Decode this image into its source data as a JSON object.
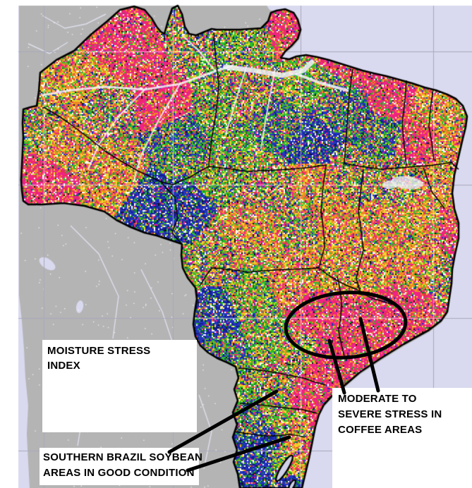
{
  "map": {
    "labels": {
      "index": {
        "line1": "MOISTURE STRESS",
        "line2": "INDEX"
      },
      "coffee": {
        "line1": "MODERATE TO",
        "line2": "SEVERE STRESS IN",
        "line3": "COFFEE AREAS"
      },
      "soybean": {
        "line1": "SOUTHERN BRAZIL SOYBEAN",
        "line2": "AREAS IN GOOD CONDITION"
      }
    },
    "colors": {
      "frame_white": "#ffffff",
      "ocean_lavender": "#d9d9ef",
      "foreign_land_gray": "#b4b4b4",
      "graticule_gray": "#a9a9bd",
      "boundary_black": "#000000",
      "annotation_black": "#000000",
      "river_white": "#f2f2f8"
    },
    "palette": {
      "severe_stress_pink": "#f02288",
      "stress_red": "#e83050",
      "moderate_orange": "#f08824",
      "mild_yellow": "#ecd828",
      "adequate_green": "#2cbe2c",
      "dark_green": "#0e8a14",
      "surplus_blue": "#2334c0",
      "dark_blue": "#131c8e",
      "nodata_white": "#ffffff"
    }
  }
}
